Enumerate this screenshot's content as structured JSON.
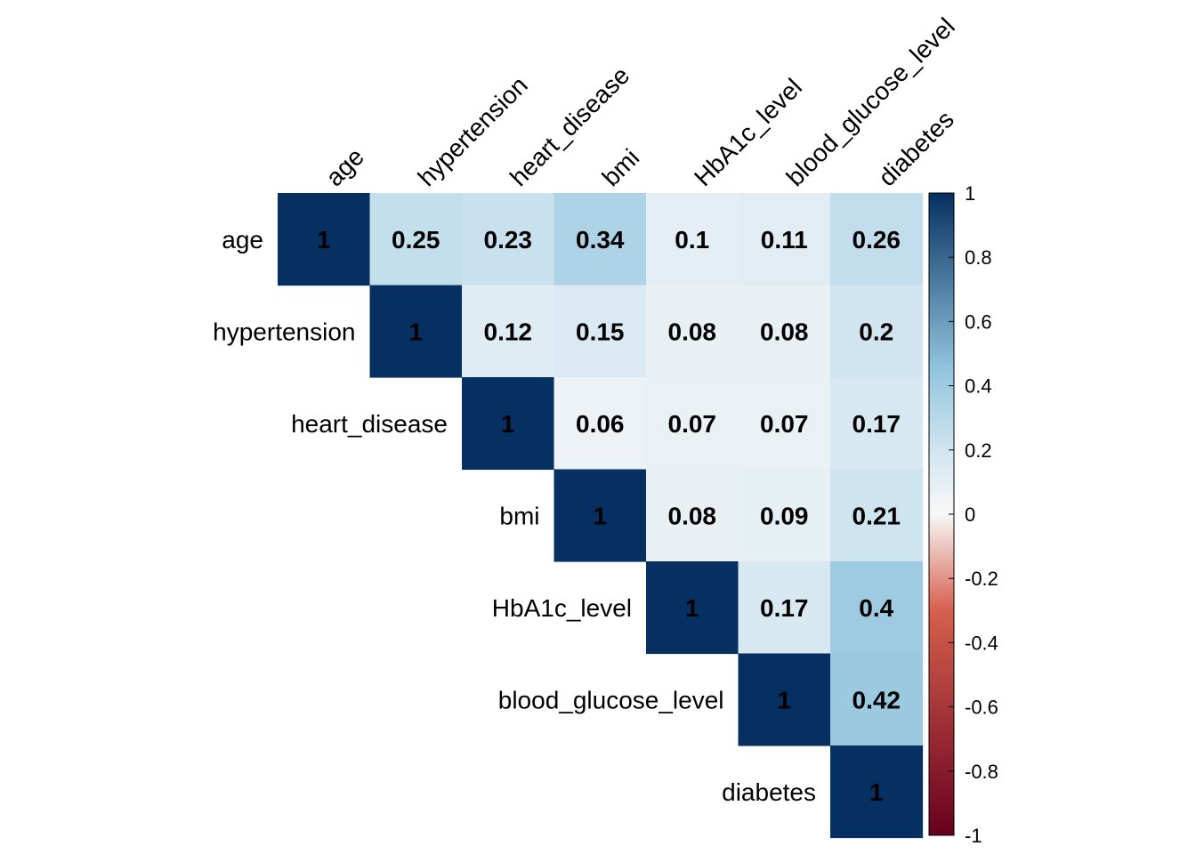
{
  "chart_data": {
    "type": "heatmap",
    "variables": [
      "age",
      "hypertension",
      "heart_disease",
      "bmi",
      "HbA1c_level",
      "blood_glucose_level",
      "diabetes"
    ],
    "matrix": [
      [
        1,
        0.25,
        0.23,
        0.34,
        0.1,
        0.11,
        0.26
      ],
      [
        null,
        1,
        0.12,
        0.15,
        0.08,
        0.08,
        0.2
      ],
      [
        null,
        null,
        1,
        0.06,
        0.07,
        0.07,
        0.17
      ],
      [
        null,
        null,
        null,
        1,
        0.08,
        0.09,
        0.21
      ],
      [
        null,
        null,
        null,
        null,
        1,
        0.17,
        0.4
      ],
      [
        null,
        null,
        null,
        null,
        null,
        1,
        0.42
      ],
      [
        null,
        null,
        null,
        null,
        null,
        null,
        1
      ]
    ],
    "layout": "upper-triangle",
    "colorbar": {
      "ticks": [
        "1",
        "0.8",
        "0.6",
        "0.4",
        "0.2",
        "0",
        "-0.2",
        "-0.4",
        "-0.6",
        "-0.8",
        "-1"
      ],
      "range": [
        -1,
        1
      ],
      "placement": "right"
    },
    "colors": {
      "neg_strong": "#67001f",
      "neg_mid": "#d6604d",
      "neutral": "#f7f7f7",
      "pos_light": "#d1e5f0",
      "pos_mid": "#92c5de",
      "pos_strong": "#053061"
    }
  }
}
